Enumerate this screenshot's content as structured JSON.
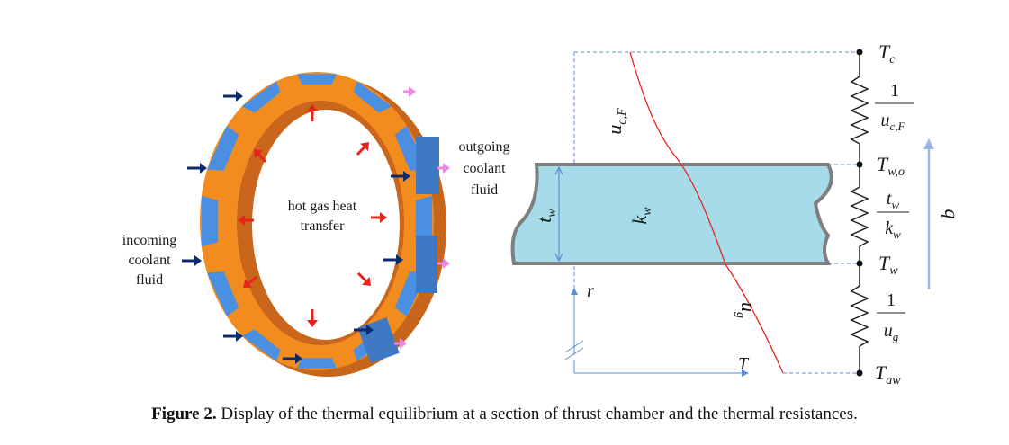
{
  "figure": {
    "caption_label": "Figure 2.",
    "caption_text": "Display of the thermal equilibrium at a section of thrust chamber and the thermal resistances."
  },
  "left": {
    "center_text": [
      "hot gas heat",
      "transfer"
    ],
    "incoming_text": [
      "incoming",
      "coolant",
      "fluid"
    ],
    "outgoing_text": [
      "outgoing",
      "coolant",
      "fluid"
    ]
  },
  "right": {
    "t_w": "t",
    "t_w_sub": "w",
    "k_w": "k",
    "k_w_sub": "w",
    "u_cF": "u",
    "u_cF_sub": "c,F",
    "u_g": "u",
    "u_g_sub": "g",
    "r": "r",
    "T": "T",
    "q": "q",
    "Tc": "T",
    "Tc_sub": "c",
    "Two": "T",
    "Two_sub": "w,o",
    "Tw": "T",
    "Tw_sub": "w",
    "Taw": "T",
    "Taw_sub": "aw",
    "res1_num": "1",
    "res2_num": "t",
    "res2_num_sub": "w",
    "res2_den": "k",
    "res2_den_sub": "w",
    "res3_num": "1"
  },
  "colors": {
    "wall_fill": "#a6dce9",
    "wall_stroke": "#7f7f7f",
    "ring_orange": "#f28c1e",
    "channel_blue": "#4a8fe2",
    "profile_red": "#e8231b",
    "guide_blue": "#5b8ed6",
    "arrow_navy": "#0d2b6b",
    "arrow_pink": "#e98ae0"
  }
}
